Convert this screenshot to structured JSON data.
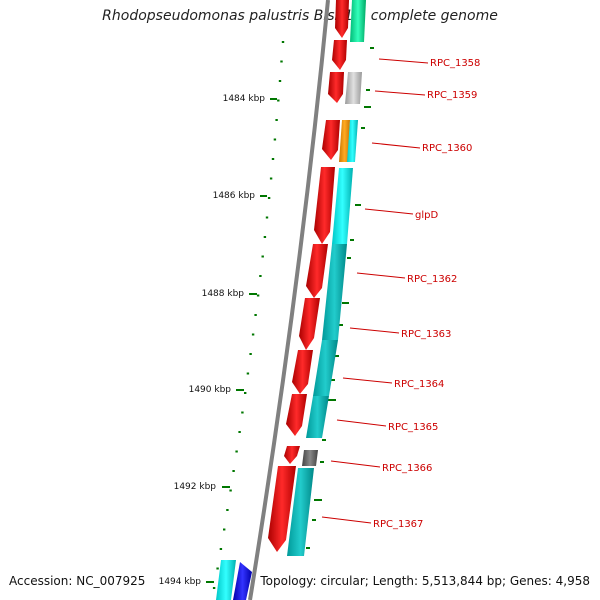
{
  "title": "Rhodopseudomonas palustris BisB18, complete genome",
  "accession": "Accession: NC_007925",
  "summary": "Topology: circular; Length: 5,513,844 bp; Genes: 4,958",
  "ticks": [
    {
      "label": "1484 kbp"
    },
    {
      "label": "1486 kbp"
    },
    {
      "label": "1488 kbp"
    },
    {
      "label": "1490 kbp"
    },
    {
      "label": "1492 kbp"
    },
    {
      "label": "1494 kbp"
    }
  ],
  "genes": [
    {
      "label": "RPC_1358"
    },
    {
      "label": "RPC_1359"
    },
    {
      "label": "RPC_1360"
    },
    {
      "label": "glpD"
    },
    {
      "label": "RPC_1362"
    },
    {
      "label": "RPC_1363"
    },
    {
      "label": "RPC_1364"
    },
    {
      "label": "RPC_1365"
    },
    {
      "label": "RPC_1366"
    },
    {
      "label": "RPC_1367"
    }
  ],
  "colors": {
    "backbone": "#808080",
    "cds": "#ff0000",
    "cog_cyan": "#00ffff",
    "cog_teal": "#00cccc",
    "cog_green": "#00ee99",
    "cog_gray": "#bbbbbb",
    "cog_dark": "#666666",
    "cog_orange": "#ff9900",
    "cog_blue": "#0000ff",
    "tick": "#007700",
    "label": "#cc0000"
  }
}
